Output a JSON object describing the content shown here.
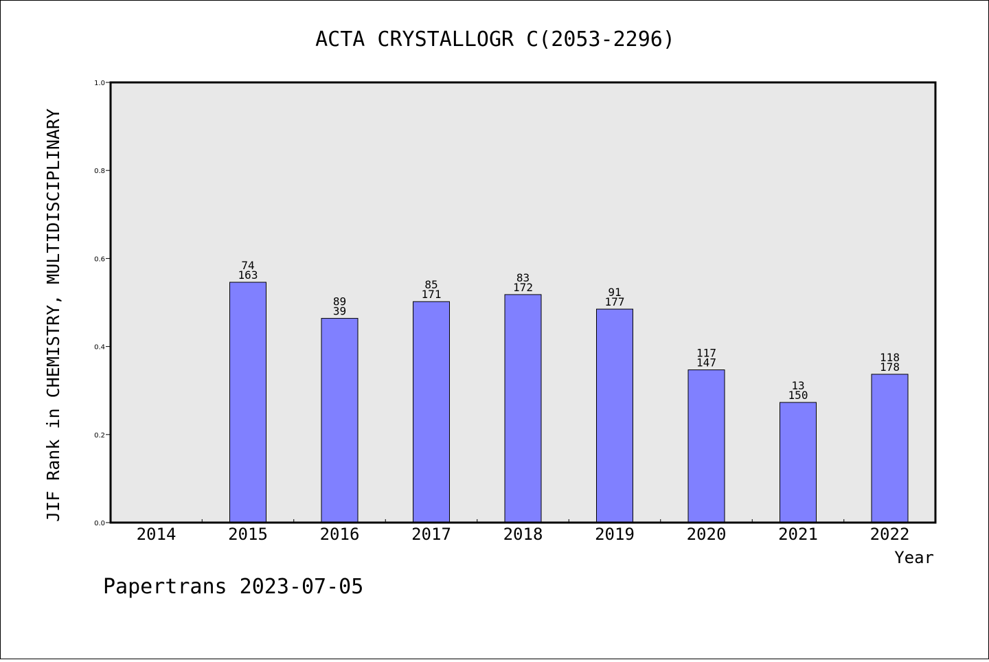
{
  "chart_data": {
    "type": "bar",
    "title": "ACTA CRYSTALLOGR C(2053-2296)",
    "xlabel": "Year",
    "ylabel": "JIF Rank in CHEMISTRY, MULTIDISCIPLINARY",
    "ylim": [
      0,
      1.0
    ],
    "yticks": [
      "0.0",
      "0.2",
      "0.4",
      "0.6",
      "0.8",
      "1.0"
    ],
    "grid": false,
    "categories": [
      "2014",
      "2015",
      "2016",
      "2017",
      "2018",
      "2019",
      "2020",
      "2021",
      "2022"
    ],
    "values": [
      0,
      0.546,
      0.464,
      0.502,
      0.518,
      0.485,
      0.347,
      0.273,
      0.337
    ],
    "labels_top": [
      "",
      "74",
      "89",
      "85",
      "83",
      "91",
      "117",
      "13",
      "118"
    ],
    "labels_bottom": [
      "",
      "163",
      "39",
      "171",
      "172",
      "177",
      "147",
      "150",
      "178"
    ],
    "bar_color": "#8080ff",
    "plot_background": "#e8e8e8"
  },
  "footer": "Papertrans 2023-07-05"
}
